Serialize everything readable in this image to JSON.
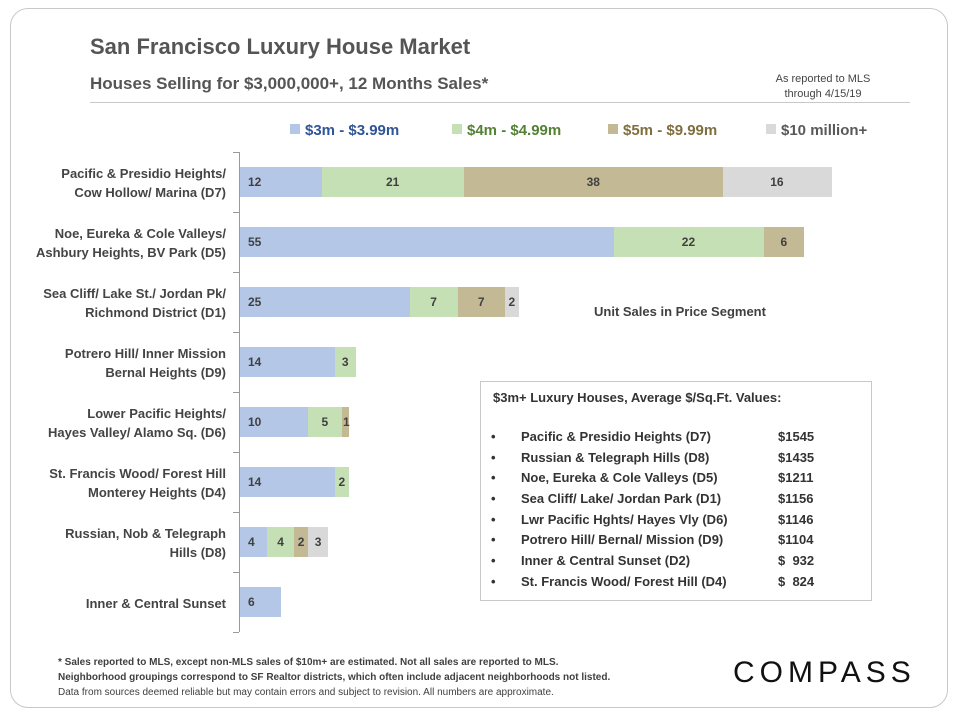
{
  "header": {
    "title": "San Francisco Luxury House Market",
    "subtitle": "Houses Selling for $3,000,000+, 12 Months Sales*",
    "mls_note_line1": "As reported to MLS",
    "mls_note_line2": "through 4/15/19"
  },
  "legend": {
    "items": [
      {
        "label": "$3m - $3.99m",
        "color": "#b4c7e7",
        "text_color": "#2f5597"
      },
      {
        "label": "$4m - $4.99m",
        "color": "#c5e0b4",
        "text_color": "#548235"
      },
      {
        "label": "$5m - $9.99m",
        "color": "#c4b995",
        "text_color": "#7f6f3f"
      },
      {
        "label": "$10 million+",
        "color": "#d9d9d9",
        "text_color": "#595959"
      }
    ]
  },
  "chart_data": {
    "type": "bar",
    "orientation": "horizontal",
    "stacked": true,
    "categories": [
      [
        "Pacific & Presidio Heights/",
        "Cow Hollow/ Marina (D7)"
      ],
      [
        "Noe, Eureka & Cole Valleys/",
        "Ashbury Heights, BV Park (D5)"
      ],
      [
        "Sea Cliff/ Lake St./ Jordan Pk/",
        "Richmond District (D1)"
      ],
      [
        "Potrero Hill/ Inner Mission",
        "Bernal Heights (D9)"
      ],
      [
        "Lower Pacific Heights/",
        "Hayes Valley/ Alamo Sq. (D6)"
      ],
      [
        "St. Francis Wood/ Forest Hill",
        "Monterey Heights (D4)"
      ],
      [
        "Russian, Nob & Telegraph",
        "Hills (D8)"
      ],
      [
        "Inner & Central Sunset"
      ]
    ],
    "series": [
      {
        "name": "$3m - $3.99m",
        "color": "#b4c7e7",
        "values": [
          12,
          55,
          25,
          14,
          10,
          14,
          4,
          6
        ]
      },
      {
        "name": "$4m - $4.99m",
        "color": "#c5e0b4",
        "values": [
          21,
          22,
          7,
          3,
          5,
          2,
          4,
          0
        ]
      },
      {
        "name": "$5m - $9.99m",
        "color": "#c4b995",
        "values": [
          38,
          6,
          7,
          0,
          1,
          0,
          2,
          0
        ]
      },
      {
        "name": "$10 million+",
        "color": "#d9d9d9",
        "values": [
          16,
          0,
          2,
          0,
          0,
          0,
          3,
          0
        ]
      }
    ],
    "annotation": "Unit Sales in Price Segment"
  },
  "info_box": {
    "title": "$3m+ Luxury Houses, Average $/Sq.Ft. Values:",
    "bullet": "•",
    "items": [
      {
        "name": "Pacific & Presidio Heights (D7)",
        "value": "$1545"
      },
      {
        "name": "Russian & Telegraph Hills (D8)",
        "value": "$1435"
      },
      {
        "name": "Noe, Eureka & Cole Valleys (D5)",
        "value": "$1211"
      },
      {
        "name": "Sea Cliff/ Lake/ Jordan Park (D1)",
        "value": "$1156"
      },
      {
        "name": "Lwr Pacific Hghts/ Hayes Vly (D6)",
        "value": "$1146"
      },
      {
        "name": "Potrero Hill/ Bernal/ Mission (D9)",
        "value": "$1104"
      },
      {
        "name": "Inner & Central Sunset (D2)",
        "value": "$  932"
      },
      {
        "name": "St. Francis Wood/ Forest Hill (D4)",
        "value": "$  824"
      }
    ]
  },
  "footer": {
    "line1": "* Sales reported to MLS, except non-MLS sales of $10m+ are estimated. Not all sales are reported to MLS.",
    "line2": "Neighborhood groupings correspond to SF Realtor districts, which often include adjacent neighborhoods not listed.",
    "line3": "Data from sources deemed reliable but may contain errors and subject to revision. All numbers are approximate."
  },
  "logo": {
    "text": "COMPASS"
  }
}
